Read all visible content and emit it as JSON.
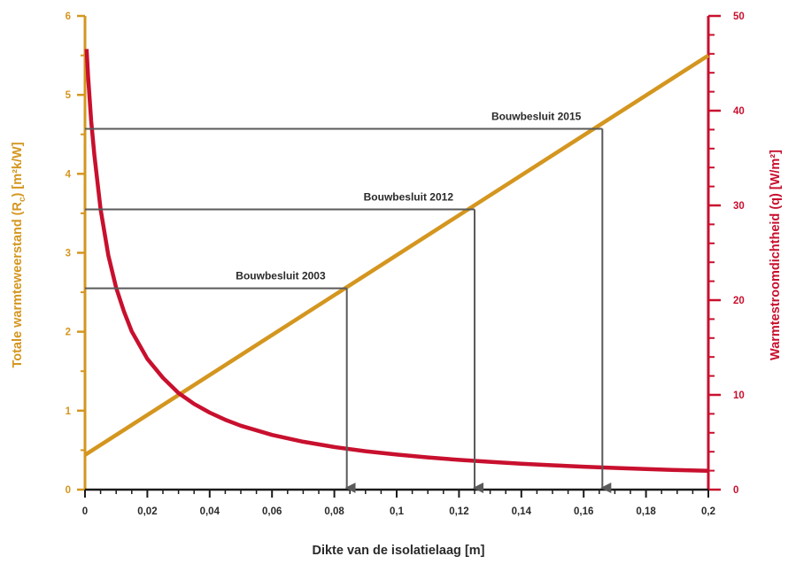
{
  "chart_data": {
    "type": "line",
    "x": {
      "label": "Dikte van de isolatielaag [m]",
      "ticks": [
        "0",
        "0,02",
        "0,04",
        "0,06",
        "0,08",
        "0,1",
        "0,12",
        "0,14",
        "0,16",
        "0,18",
        "0,2"
      ],
      "range": [
        0,
        0.2
      ]
    },
    "y_left": {
      "label_main": "Totale warmteweerstand (R",
      "label_sub": "c",
      "label_end": ") [m²k/W]",
      "ticks": [
        "0",
        "1",
        "2",
        "3",
        "4",
        "5",
        "6"
      ],
      "range": [
        0,
        6
      ],
      "color": "#D4961F"
    },
    "y_right": {
      "label": "Warmtestroomdichtheid (q) [W/m²]",
      "ticks": [
        "0",
        "10",
        "20",
        "30",
        "40",
        "50"
      ],
      "range": [
        0,
        50
      ],
      "color": "#C8102E"
    },
    "series": [
      {
        "axis": "left",
        "color": "#D4961F",
        "x": [
          0,
          0.2
        ],
        "y": [
          0.44,
          5.5
        ]
      },
      {
        "axis": "right",
        "color": "#C8102E",
        "x": [
          0.0005,
          0.001,
          0.002,
          0.003,
          0.005,
          0.0075,
          0.01,
          0.0125,
          0.015,
          0.02,
          0.025,
          0.03,
          0.035,
          0.04,
          0.045,
          0.05,
          0.06,
          0.07,
          0.08,
          0.09,
          0.1,
          0.11,
          0.12,
          0.13,
          0.14,
          0.15,
          0.16,
          0.17,
          0.18,
          0.19,
          0.2
        ],
        "y": [
          46.5,
          43.6,
          38.9,
          35.3,
          29.6,
          24.7,
          21.3,
          18.8,
          16.7,
          13.8,
          11.8,
          10.2,
          9.05,
          8.13,
          7.37,
          6.75,
          5.78,
          5.06,
          4.5,
          4.06,
          3.7,
          3.4,
          3.14,
          2.93,
          2.74,
          2.57,
          2.42,
          2.29,
          2.17,
          2.07,
          1.98
        ]
      }
    ],
    "annotations": [
      {
        "label": "Bouwbesluit 2003",
        "x": 0.084,
        "y": 2.55
      },
      {
        "label": "Bouwbesluit 2012",
        "x": 0.125,
        "y": 3.55
      },
      {
        "label": "Bouwbesluit 2015",
        "x": 0.166,
        "y": 4.57
      }
    ],
    "grid": false
  }
}
